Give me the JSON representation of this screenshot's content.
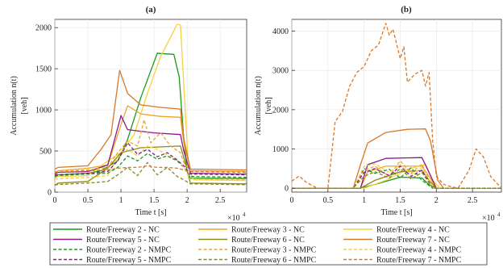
{
  "chart_data": [
    {
      "type": "line",
      "title": "(a)",
      "xlabel": "Time  t [s]",
      "ylabel": "Accumulation  n(t)",
      "yunit": "[veh]",
      "x_multiplier": "×10^4",
      "xlim": [
        0,
        2.9
      ],
      "ylim": [
        0,
        2100
      ],
      "xticks": [
        "0",
        "0.5",
        "1",
        "1.5",
        "2",
        "2.5"
      ],
      "yticks": [
        "0",
        "500",
        "1000",
        "1500",
        "2000"
      ],
      "series": [
        {
          "name": "Route/Freeway 2 - NC",
          "color": "#1a9a1a",
          "dash": "solid",
          "x": [
            0,
            0.05,
            0.5,
            0.7,
            0.95,
            1.1,
            1.3,
            1.55,
            1.6,
            1.8,
            1.88,
            1.95,
            2.0,
            2.05,
            2.9
          ],
          "y": [
            180,
            210,
            230,
            260,
            380,
            640,
            1150,
            1690,
            1685,
            1675,
            1400,
            650,
            250,
            170,
            165
          ]
        },
        {
          "name": "Route/Freeway 3 - NC",
          "color": "#f0a428",
          "dash": "solid",
          "x": [
            0,
            0.05,
            0.5,
            0.8,
            1.0,
            1.1,
            1.3,
            1.6,
            1.9,
            1.95,
            2.05,
            2.9
          ],
          "y": [
            230,
            260,
            290,
            330,
            820,
            1050,
            950,
            920,
            910,
            600,
            260,
            250
          ]
        },
        {
          "name": "Route/Freeway 4 - NC",
          "color": "#f5d040",
          "dash": "solid",
          "x": [
            0,
            0.05,
            0.5,
            0.8,
            1.0,
            1.2,
            1.4,
            1.6,
            1.85,
            1.9,
            1.95,
            2.02,
            2.1,
            2.9
          ],
          "y": [
            170,
            190,
            200,
            380,
            480,
            700,
            1200,
            1650,
            2040,
            2030,
            1300,
            300,
            150,
            140
          ]
        },
        {
          "name": "Route/Freeway 5 - NC",
          "color": "#8a1a8a",
          "dash": "solid",
          "x": [
            0,
            0.05,
            0.5,
            0.8,
            1.0,
            1.1,
            1.5,
            1.9,
            1.95,
            2.05,
            2.9
          ],
          "y": [
            220,
            240,
            250,
            330,
            930,
            760,
            720,
            700,
            500,
            230,
            220
          ]
        },
        {
          "name": "Route/Freeway 6 - NC",
          "color": "#8a8a1a",
          "dash": "solid",
          "x": [
            0,
            0.05,
            0.5,
            0.8,
            1.0,
            1.3,
            1.9,
            1.95,
            2.05,
            2.9
          ],
          "y": [
            80,
            110,
            130,
            290,
            480,
            540,
            560,
            420,
            110,
            100
          ]
        },
        {
          "name": "Route/Freeway 7 - NC",
          "color": "#d6782a",
          "dash": "solid",
          "x": [
            0,
            0.05,
            0.5,
            0.7,
            0.85,
            0.98,
            1.1,
            1.3,
            1.6,
            1.9,
            1.95,
            2.05,
            2.9
          ],
          "y": [
            280,
            300,
            320,
            520,
            700,
            1480,
            1200,
            1060,
            1030,
            1010,
            650,
            280,
            270
          ]
        },
        {
          "name": "Route/Freeway 2 - NMPC",
          "color": "#1a9a1a",
          "dash": "dashed",
          "x": [
            0,
            0.5,
            0.8,
            0.95,
            1.1,
            1.25,
            1.4,
            1.55,
            1.7,
            1.85,
            1.95,
            2.05,
            2.9
          ],
          "y": [
            200,
            220,
            230,
            300,
            440,
            380,
            470,
            400,
            440,
            380,
            300,
            190,
            180
          ]
        },
        {
          "name": "Route/Freeway 3 - NMPC",
          "color": "#f0a428",
          "dash": "dashed",
          "x": [
            0,
            0.5,
            0.8,
            0.95,
            1.1,
            1.25,
            1.35,
            1.45,
            1.6,
            1.75,
            1.9,
            1.95,
            2.05,
            2.9
          ],
          "y": [
            250,
            270,
            300,
            480,
            620,
            560,
            880,
            600,
            720,
            560,
            480,
            360,
            260,
            250
          ]
        },
        {
          "name": "Route/Freeway 4 - NMPC",
          "color": "#f5d040",
          "dash": "dashed",
          "x": [
            0,
            0.5,
            0.8,
            0.95,
            1.1,
            1.25,
            1.4,
            1.55,
            1.7,
            1.85,
            1.95,
            2.05,
            2.9
          ],
          "y": [
            160,
            180,
            200,
            420,
            520,
            440,
            560,
            520,
            450,
            400,
            300,
            160,
            150
          ]
        },
        {
          "name": "Route/Freeway 5 - NMPC",
          "color": "#8a1a8a",
          "dash": "dashed",
          "x": [
            0,
            0.5,
            0.8,
            0.95,
            1.1,
            1.25,
            1.4,
            1.55,
            1.7,
            1.85,
            1.95,
            2.05,
            2.9
          ],
          "y": [
            210,
            230,
            250,
            380,
            600,
            460,
            520,
            430,
            480,
            390,
            320,
            220,
            210
          ]
        },
        {
          "name": "Route/Freeway 6 - NMPC",
          "color": "#8a8a1a",
          "dash": "dashed",
          "x": [
            0,
            0.5,
            0.8,
            0.95,
            1.1,
            1.25,
            1.4,
            1.55,
            1.7,
            1.85,
            1.95,
            2.05,
            2.9
          ],
          "y": [
            90,
            110,
            130,
            210,
            300,
            200,
            360,
            210,
            300,
            190,
            150,
            100,
            90
          ]
        },
        {
          "name": "Route/Freeway 7 - NMPC",
          "color": "#d6782a",
          "dash": "dashed",
          "x": [
            0,
            0.5,
            0.8,
            0.95,
            1.1,
            1.25,
            1.4,
            1.55,
            1.7,
            1.85,
            1.95,
            2.05,
            2.9
          ],
          "y": [
            240,
            260,
            270,
            290,
            300,
            300,
            320,
            300,
            300,
            290,
            270,
            250,
            240
          ]
        }
      ]
    },
    {
      "type": "line",
      "title": "(b)",
      "xlabel": "Time  t [s]",
      "ylabel": "Accumulation  n(t)",
      "yunit": "[veh]",
      "x_multiplier": "×10^4",
      "xlim": [
        0,
        2.9
      ],
      "ylim": [
        -100,
        4300
      ],
      "xticks": [
        "0",
        "0.5",
        "1",
        "1.5",
        "2",
        "2.5"
      ],
      "yticks": [
        "0",
        "1000",
        "2000",
        "3000",
        "4000"
      ],
      "series": [
        {
          "name": "Route/Freeway 2 - NC",
          "color": "#1a9a1a",
          "dash": "solid",
          "x": [
            0,
            0.95,
            1.2,
            1.5,
            1.8,
            1.9,
            2.0,
            2.9
          ],
          "y": [
            0,
            0,
            120,
            280,
            260,
            90,
            0,
            0
          ]
        },
        {
          "name": "Route/Freeway 3 - NC",
          "color": "#f0a428",
          "dash": "solid",
          "x": [
            0,
            0.95,
            1.05,
            1.3,
            1.8,
            1.9,
            2.0,
            2.9
          ],
          "y": [
            0,
            0,
            420,
            560,
            560,
            300,
            0,
            0
          ]
        },
        {
          "name": "Route/Freeway 4 - NC",
          "color": "#f5d040",
          "dash": "solid",
          "x": [
            0,
            1.0,
            1.3,
            1.6,
            1.85,
            1.95,
            2.05,
            2.9
          ],
          "y": [
            0,
            0,
            200,
            480,
            610,
            200,
            0,
            0
          ]
        },
        {
          "name": "Route/Freeway 5 - NC",
          "color": "#8a1a8a",
          "dash": "solid",
          "x": [
            0,
            0.95,
            1.05,
            1.3,
            1.8,
            1.9,
            2.0,
            2.9
          ],
          "y": [
            0,
            0,
            600,
            760,
            780,
            400,
            0,
            0
          ]
        },
        {
          "name": "Route/Freeway 6 - NC",
          "color": "#8a8a1a",
          "dash": "solid",
          "x": [
            0,
            0.95,
            1.15,
            1.5,
            1.8,
            1.9,
            2.0,
            2.9
          ],
          "y": [
            0,
            0,
            200,
            420,
            450,
            200,
            0,
            0
          ]
        },
        {
          "name": "Route/Freeway 7 - NC",
          "color": "#d6782a",
          "dash": "solid",
          "x": [
            0,
            0.85,
            0.95,
            1.05,
            1.3,
            1.6,
            1.85,
            1.92,
            2.02,
            2.1,
            2.9
          ],
          "y": [
            0,
            0,
            600,
            1150,
            1420,
            1500,
            1510,
            1200,
            200,
            0,
            0
          ]
        },
        {
          "name": "Route/Freeway 2 - NMPC",
          "color": "#1a9a1a",
          "dash": "dashed",
          "x": [
            0,
            0.85,
            1.0,
            1.15,
            1.35,
            1.5,
            1.65,
            1.8,
            1.95,
            2.9
          ],
          "y": [
            0,
            0,
            500,
            380,
            480,
            260,
            520,
            200,
            0,
            0
          ]
        },
        {
          "name": "Route/Freeway 3 - NMPC",
          "color": "#f0a428",
          "dash": "dashed",
          "x": [
            0,
            0.85,
            1.0,
            1.15,
            1.35,
            1.5,
            1.65,
            1.8,
            1.95,
            2.9
          ],
          "y": [
            0,
            0,
            450,
            560,
            300,
            700,
            380,
            620,
            0,
            0
          ]
        },
        {
          "name": "Route/Freeway 4 - NMPC",
          "color": "#f5d040",
          "dash": "dashed",
          "x": [
            0,
            0.85,
            1.0,
            1.15,
            1.35,
            1.5,
            1.65,
            1.8,
            1.95,
            2.9
          ],
          "y": [
            0,
            0,
            560,
            620,
            400,
            600,
            350,
            520,
            0,
            0
          ]
        },
        {
          "name": "Route/Freeway 5 - NMPC",
          "color": "#8a1a8a",
          "dash": "dashed",
          "x": [
            0,
            0.85,
            1.0,
            1.15,
            1.35,
            1.5,
            1.65,
            1.8,
            1.95,
            2.9
          ],
          "y": [
            0,
            0,
            400,
            500,
            320,
            560,
            300,
            460,
            0,
            0
          ]
        },
        {
          "name": "Route/Freeway 6 - NMPC",
          "color": "#8a8a1a",
          "dash": "dashed",
          "x": [
            0,
            0.85,
            1.0,
            1.15,
            1.35,
            1.5,
            1.65,
            1.8,
            1.95,
            2.9
          ],
          "y": [
            0,
            0,
            300,
            420,
            260,
            500,
            240,
            400,
            0,
            0
          ]
        },
        {
          "name": "Route/Freeway 7 - NMPC",
          "color": "#d6782a",
          "dash": "dashed",
          "x": [
            0,
            0.1,
            0.2,
            0.35,
            0.5,
            0.6,
            0.7,
            0.8,
            0.9,
            1.0,
            1.1,
            1.2,
            1.3,
            1.35,
            1.4,
            1.5,
            1.55,
            1.6,
            1.7,
            1.8,
            1.85,
            1.9,
            1.95,
            2.0,
            2.1,
            2.2,
            2.3,
            2.45,
            2.55,
            2.65,
            2.75,
            2.9
          ],
          "y": [
            180,
            310,
            150,
            0,
            0,
            1700,
            1950,
            2600,
            2950,
            3100,
            3500,
            3650,
            4200,
            3900,
            4050,
            3300,
            3600,
            2700,
            2900,
            3000,
            2600,
            2950,
            1200,
            300,
            100,
            40,
            0,
            450,
            1000,
            800,
            300,
            0
          ]
        }
      ]
    }
  ]
}
